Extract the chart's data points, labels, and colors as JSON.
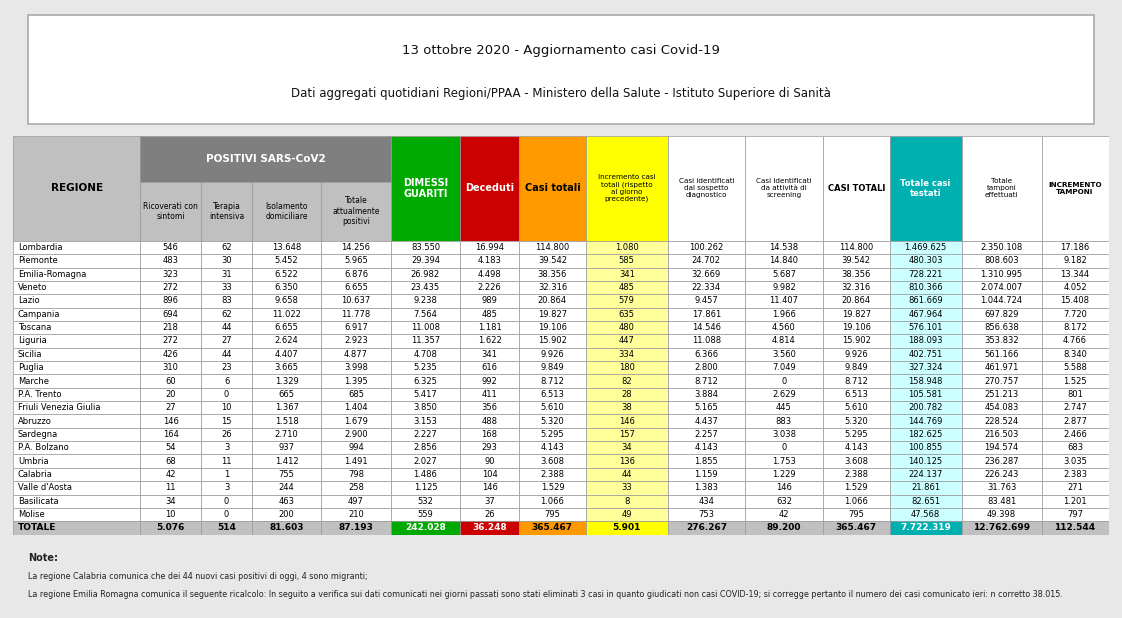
{
  "title1": "13 ottobre 2020 - Aggiornamento casi Covid-19",
  "title2": "Dati aggregati quotidiani Regioni/PPAA - Ministero della Salute - Istituto Superiore di Sanità",
  "note_title": "Note:",
  "notes": [
    "La regione Calabria comunica che dei 44 nuovi casi positivi di oggi, 4 sono migranti;",
    "La regione Emilia Romagna comunica il seguente ricalcolo: In seguito a verifica sui dati comunicati nei giorni passati sono stati eliminati 3 casi in quanto giudicati non casi COVID-19; si corregge pertanto il numero dei casi comunicato ieri: n corretto 38.015."
  ],
  "rows": [
    [
      "Lombardia",
      "546",
      "62",
      "13.648",
      "14.256",
      "83.550",
      "16.994",
      "114.800",
      "1.080",
      "100.262",
      "14.538",
      "114.800",
      "1.469.625",
      "2.350.108",
      "17.186"
    ],
    [
      "Piemonte",
      "483",
      "30",
      "5.452",
      "5.965",
      "29.394",
      "4.183",
      "39.542",
      "585",
      "24.702",
      "14.840",
      "39.542",
      "480.303",
      "808.603",
      "9.182"
    ],
    [
      "Emilia-Romagna",
      "323",
      "31",
      "6.522",
      "6.876",
      "26.982",
      "4.498",
      "38.356",
      "341",
      "32.669",
      "5.687",
      "38.356",
      "728.221",
      "1.310.995",
      "13.344"
    ],
    [
      "Veneto",
      "272",
      "33",
      "6.350",
      "6.655",
      "23.435",
      "2.226",
      "32.316",
      "485",
      "22.334",
      "9.982",
      "32.316",
      "810.366",
      "2.074.007",
      "4.052"
    ],
    [
      "Lazio",
      "896",
      "83",
      "9.658",
      "10.637",
      "9.238",
      "989",
      "20.864",
      "579",
      "9.457",
      "11.407",
      "20.864",
      "861.669",
      "1.044.724",
      "15.408"
    ],
    [
      "Campania",
      "694",
      "62",
      "11.022",
      "11.778",
      "7.564",
      "485",
      "19.827",
      "635",
      "17.861",
      "1.966",
      "19.827",
      "467.964",
      "697.829",
      "7.720"
    ],
    [
      "Toscana",
      "218",
      "44",
      "6.655",
      "6.917",
      "11.008",
      "1.181",
      "19.106",
      "480",
      "14.546",
      "4.560",
      "19.106",
      "576.101",
      "856.638",
      "8.172"
    ],
    [
      "Liguria",
      "272",
      "27",
      "2.624",
      "2.923",
      "11.357",
      "1.622",
      "15.902",
      "447",
      "11.088",
      "4.814",
      "15.902",
      "188.093",
      "353.832",
      "4.766"
    ],
    [
      "Sicilia",
      "426",
      "44",
      "4.407",
      "4.877",
      "4.708",
      "341",
      "9.926",
      "334",
      "6.366",
      "3.560",
      "9.926",
      "402.751",
      "561.166",
      "8.340"
    ],
    [
      "Puglia",
      "310",
      "23",
      "3.665",
      "3.998",
      "5.235",
      "616",
      "9.849",
      "180",
      "2.800",
      "7.049",
      "9.849",
      "327.324",
      "461.971",
      "5.588"
    ],
    [
      "Marche",
      "60",
      "6",
      "1.329",
      "1.395",
      "6.325",
      "992",
      "8.712",
      "82",
      "8.712",
      "0",
      "8.712",
      "158.948",
      "270.757",
      "1.525"
    ],
    [
      "P.A. Trento",
      "20",
      "0",
      "665",
      "685",
      "5.417",
      "411",
      "6.513",
      "28",
      "3.884",
      "2.629",
      "6.513",
      "105.581",
      "251.213",
      "801"
    ],
    [
      "Friuli Venezia Giulia",
      "27",
      "10",
      "1.367",
      "1.404",
      "3.850",
      "356",
      "5.610",
      "38",
      "5.165",
      "445",
      "5.610",
      "200.782",
      "454.083",
      "2.747"
    ],
    [
      "Abruzzo",
      "146",
      "15",
      "1.518",
      "1.679",
      "3.153",
      "488",
      "5.320",
      "146",
      "4.437",
      "883",
      "5.320",
      "144.769",
      "228.524",
      "2.877"
    ],
    [
      "Sardegna",
      "164",
      "26",
      "2.710",
      "2.900",
      "2.227",
      "168",
      "5.295",
      "157",
      "2.257",
      "3.038",
      "5.295",
      "182.625",
      "216.503",
      "2.466"
    ],
    [
      "P.A. Bolzano",
      "54",
      "3",
      "937",
      "994",
      "2.856",
      "293",
      "4.143",
      "34",
      "4.143",
      "0",
      "4.143",
      "100.855",
      "194.574",
      "683"
    ],
    [
      "Umbria",
      "68",
      "11",
      "1.412",
      "1.491",
      "2.027",
      "90",
      "3.608",
      "136",
      "1.855",
      "1.753",
      "3.608",
      "140.125",
      "236.287",
      "3.035"
    ],
    [
      "Calabria",
      "42",
      "1",
      "755",
      "798",
      "1.486",
      "104",
      "2.388",
      "44",
      "1.159",
      "1.229",
      "2.388",
      "224.137",
      "226.243",
      "2.383"
    ],
    [
      "Valle d'Aosta",
      "11",
      "3",
      "244",
      "258",
      "1.125",
      "146",
      "1.529",
      "33",
      "1.383",
      "146",
      "1.529",
      "21.861",
      "31.763",
      "271"
    ],
    [
      "Basilicata",
      "34",
      "0",
      "463",
      "497",
      "532",
      "37",
      "1.066",
      "8",
      "434",
      "632",
      "1.066",
      "82.651",
      "83.481",
      "1.201"
    ],
    [
      "Molise",
      "10",
      "0",
      "200",
      "210",
      "559",
      "26",
      "795",
      "49",
      "753",
      "42",
      "795",
      "47.568",
      "49.398",
      "797"
    ]
  ],
  "totale": [
    "TOTALE",
    "5.076",
    "514",
    "81.603",
    "87.193",
    "242.028",
    "36.248",
    "365.467",
    "5.901",
    "276.267",
    "89.200",
    "365.467",
    "7.722.319",
    "12.762.699",
    "112.544"
  ],
  "col_widths": [
    1.55,
    0.75,
    0.62,
    0.85,
    0.85,
    0.85,
    0.72,
    0.82,
    1.0,
    0.95,
    0.95,
    0.82,
    0.88,
    0.98,
    0.82
  ]
}
